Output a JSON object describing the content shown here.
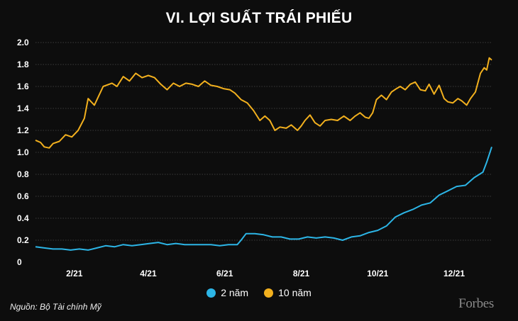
{
  "chart_data": {
    "type": "line",
    "title": "VI. LỢI SUẤT TRÁI PHIẾU",
    "xlabel": "",
    "ylabel": "",
    "ylim": [
      0,
      2.0
    ],
    "yticks": [
      "0",
      "0.2",
      "0.4",
      "0.6",
      "0.8",
      "1.0",
      "1.2",
      "1.4",
      "1.6",
      "1.8",
      "2.0"
    ],
    "xlim": [
      1,
      365
    ],
    "xticks": [
      {
        "label": "2/21",
        "day": 32
      },
      {
        "label": "4/21",
        "day": 91
      },
      {
        "label": "6/21",
        "day": 152
      },
      {
        "label": "8/21",
        "day": 213
      },
      {
        "label": "10/21",
        "day": 274
      },
      {
        "label": "12/21",
        "day": 335
      }
    ],
    "grid": true,
    "legend_position": "bottom-center",
    "series": [
      {
        "name": "2 năm",
        "color": "#2cb5e6",
        "points": [
          [
            1,
            0.14
          ],
          [
            8,
            0.13
          ],
          [
            15,
            0.12
          ],
          [
            22,
            0.12
          ],
          [
            29,
            0.11
          ],
          [
            36,
            0.12
          ],
          [
            43,
            0.11
          ],
          [
            50,
            0.13
          ],
          [
            57,
            0.15
          ],
          [
            64,
            0.14
          ],
          [
            71,
            0.16
          ],
          [
            78,
            0.15
          ],
          [
            85,
            0.16
          ],
          [
            92,
            0.17
          ],
          [
            99,
            0.18
          ],
          [
            106,
            0.16
          ],
          [
            113,
            0.17
          ],
          [
            120,
            0.16
          ],
          [
            127,
            0.16
          ],
          [
            134,
            0.16
          ],
          [
            141,
            0.16
          ],
          [
            148,
            0.15
          ],
          [
            155,
            0.16
          ],
          [
            162,
            0.16
          ],
          [
            165,
            0.2
          ],
          [
            169,
            0.26
          ],
          [
            176,
            0.26
          ],
          [
            183,
            0.25
          ],
          [
            190,
            0.23
          ],
          [
            197,
            0.23
          ],
          [
            204,
            0.21
          ],
          [
            211,
            0.21
          ],
          [
            218,
            0.23
          ],
          [
            225,
            0.22
          ],
          [
            232,
            0.23
          ],
          [
            239,
            0.22
          ],
          [
            246,
            0.2
          ],
          [
            253,
            0.23
          ],
          [
            260,
            0.24
          ],
          [
            267,
            0.27
          ],
          [
            274,
            0.29
          ],
          [
            281,
            0.33
          ],
          [
            288,
            0.41
          ],
          [
            295,
            0.45
          ],
          [
            302,
            0.48
          ],
          [
            309,
            0.52
          ],
          [
            316,
            0.54
          ],
          [
            323,
            0.61
          ],
          [
            330,
            0.65
          ],
          [
            337,
            0.69
          ],
          [
            344,
            0.7
          ],
          [
            351,
            0.77
          ],
          [
            358,
            0.82
          ],
          [
            361,
            0.91
          ],
          [
            365,
            1.05
          ]
        ]
      },
      {
        "name": "10 năm",
        "color": "#f2b01e",
        "points": [
          [
            1,
            1.11
          ],
          [
            5,
            1.09
          ],
          [
            8,
            1.05
          ],
          [
            12,
            1.04
          ],
          [
            15,
            1.08
          ],
          [
            20,
            1.1
          ],
          [
            25,
            1.16
          ],
          [
            30,
            1.14
          ],
          [
            35,
            1.2
          ],
          [
            40,
            1.31
          ],
          [
            43,
            1.49
          ],
          [
            48,
            1.43
          ],
          [
            55,
            1.6
          ],
          [
            62,
            1.63
          ],
          [
            66,
            1.6
          ],
          [
            71,
            1.69
          ],
          [
            76,
            1.65
          ],
          [
            81,
            1.72
          ],
          [
            86,
            1.68
          ],
          [
            91,
            1.7
          ],
          [
            96,
            1.68
          ],
          [
            101,
            1.62
          ],
          [
            106,
            1.57
          ],
          [
            111,
            1.63
          ],
          [
            116,
            1.6
          ],
          [
            121,
            1.63
          ],
          [
            126,
            1.62
          ],
          [
            131,
            1.6
          ],
          [
            136,
            1.65
          ],
          [
            141,
            1.61
          ],
          [
            146,
            1.6
          ],
          [
            151,
            1.58
          ],
          [
            156,
            1.57
          ],
          [
            160,
            1.54
          ],
          [
            165,
            1.48
          ],
          [
            170,
            1.45
          ],
          [
            175,
            1.38
          ],
          [
            180,
            1.29
          ],
          [
            184,
            1.33
          ],
          [
            188,
            1.29
          ],
          [
            192,
            1.2
          ],
          [
            196,
            1.23
          ],
          [
            201,
            1.22
          ],
          [
            205,
            1.25
          ],
          [
            210,
            1.2
          ],
          [
            213,
            1.24
          ],
          [
            216,
            1.29
          ],
          [
            220,
            1.34
          ],
          [
            224,
            1.27
          ],
          [
            228,
            1.24
          ],
          [
            232,
            1.29
          ],
          [
            237,
            1.3
          ],
          [
            242,
            1.29
          ],
          [
            247,
            1.33
          ],
          [
            252,
            1.29
          ],
          [
            256,
            1.33
          ],
          [
            260,
            1.36
          ],
          [
            264,
            1.32
          ],
          [
            267,
            1.31
          ],
          [
            270,
            1.36
          ],
          [
            273,
            1.48
          ],
          [
            277,
            1.52
          ],
          [
            281,
            1.48
          ],
          [
            285,
            1.55
          ],
          [
            289,
            1.58
          ],
          [
            292,
            1.6
          ],
          [
            296,
            1.57
          ],
          [
            300,
            1.62
          ],
          [
            304,
            1.64
          ],
          [
            308,
            1.57
          ],
          [
            312,
            1.56
          ],
          [
            315,
            1.62
          ],
          [
            319,
            1.53
          ],
          [
            323,
            1.61
          ],
          [
            327,
            1.49
          ],
          [
            330,
            1.46
          ],
          [
            334,
            1.45
          ],
          [
            338,
            1.49
          ],
          [
            341,
            1.47
          ],
          [
            345,
            1.43
          ],
          [
            348,
            1.49
          ],
          [
            352,
            1.55
          ],
          [
            356,
            1.72
          ],
          [
            359,
            1.77
          ],
          [
            361,
            1.75
          ],
          [
            363,
            1.86
          ],
          [
            365,
            1.84
          ]
        ]
      }
    ]
  },
  "source": "Nguồn: Bộ Tài chính Mỹ",
  "brand": "Forbes"
}
